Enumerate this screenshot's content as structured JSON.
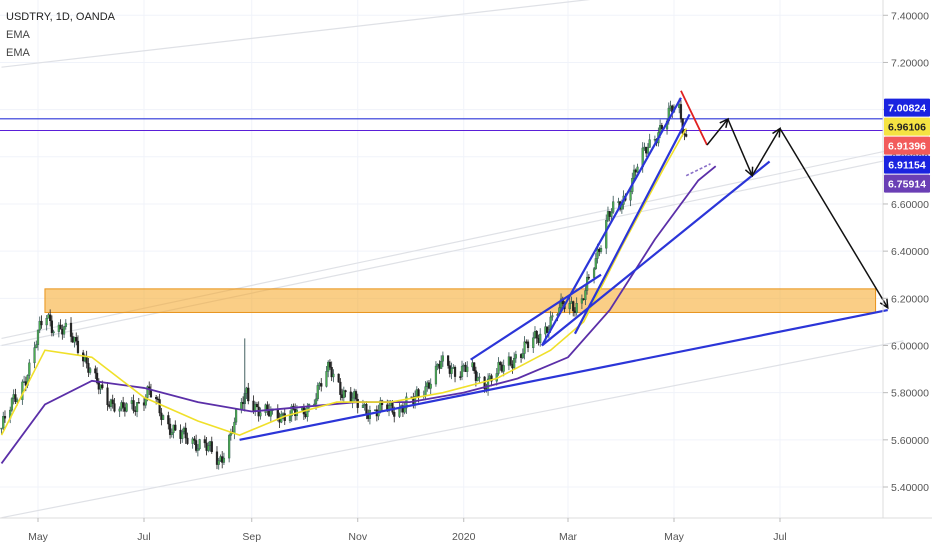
{
  "header": {
    "symbol": "USDTRY, 1D, OANDA",
    "indicators": [
      "EMA",
      "EMA"
    ]
  },
  "chart_data": {
    "type": "candlestick",
    "y_ticks": [
      "7.40000",
      "7.20000",
      "7.00000",
      "6.80000",
      "6.60000",
      "6.40000",
      "6.20000",
      "6.00000",
      "5.80000",
      "5.60000",
      "5.40000"
    ],
    "y_tick_values": [
      7.4,
      7.2,
      7.0,
      6.8,
      6.6,
      6.4,
      6.2,
      6.0,
      5.8,
      5.6,
      5.4
    ],
    "ylim": [
      5.3,
      7.5
    ],
    "x_ticks": [
      "May",
      "Jul",
      "Sep",
      "Nov",
      "2020",
      "Mar",
      "May",
      "Jul"
    ],
    "x_tick_dates": [
      "2019-05-01",
      "2019-07-01",
      "2019-09-01",
      "2019-11-01",
      "2020-01-01",
      "2020-03-01",
      "2020-05-01",
      "2020-07-01"
    ],
    "xlim": [
      "2019-04-10",
      "2020-09-10"
    ],
    "price_tags": [
      {
        "value": "7.00824",
        "price": 7.00824,
        "color": "#1a23e0",
        "text_color": "#ffffff"
      },
      {
        "value": "6.96106",
        "price": 6.96106,
        "color": "#f5e342",
        "text_color": "#222222"
      },
      {
        "value": "6.91396",
        "price": 6.91396,
        "color": "#f25b5b",
        "text_color": "#ffffff"
      },
      {
        "value": "6.91154",
        "price": 6.91154,
        "color": "#1a23e0",
        "text_color": "#ffffff"
      },
      {
        "value": "6.75914",
        "price": 6.75914,
        "color": "#6a3fb5",
        "text_color": "#ffffff"
      }
    ],
    "horizontal_lines": [
      {
        "price": 6.96106,
        "color": "#2b35d8"
      },
      {
        "price": 6.91154,
        "color": "#5a1fd8"
      }
    ],
    "support_zone": {
      "top": 6.24,
      "bottom": 6.14,
      "from": "2019-05-05",
      "to": "2020-08-25",
      "color": "#f5a623"
    },
    "candles_close": [
      [
        "2019-04-10",
        5.65
      ],
      [
        "2019-04-18",
        5.78
      ],
      [
        "2019-04-26",
        5.9
      ],
      [
        "2019-05-05",
        6.15
      ],
      [
        "2019-05-10",
        6.08
      ],
      [
        "2019-05-18",
        6.05
      ],
      [
        "2019-05-25",
        6.0
      ],
      [
        "2019-06-02",
        5.85
      ],
      [
        "2019-06-10",
        5.78
      ],
      [
        "2019-06-18",
        5.72
      ],
      [
        "2019-06-26",
        5.75
      ],
      [
        "2019-07-04",
        5.8
      ],
      [
        "2019-07-12",
        5.7
      ],
      [
        "2019-07-20",
        5.62
      ],
      [
        "2019-07-28",
        5.6
      ],
      [
        "2019-08-05",
        5.58
      ],
      [
        "2019-08-13",
        5.5
      ],
      [
        "2019-08-21",
        5.65
      ],
      [
        "2019-08-29",
        5.8
      ],
      [
        "2019-09-06",
        5.72
      ],
      [
        "2019-09-14",
        5.7
      ],
      [
        "2019-09-22",
        5.72
      ],
      [
        "2019-09-30",
        5.7
      ],
      [
        "2019-10-08",
        5.8
      ],
      [
        "2019-10-16",
        5.9
      ],
      [
        "2019-10-24",
        5.8
      ],
      [
        "2019-11-01",
        5.75
      ],
      [
        "2019-11-09",
        5.72
      ],
      [
        "2019-11-17",
        5.73
      ],
      [
        "2019-11-25",
        5.74
      ],
      [
        "2019-12-03",
        5.76
      ],
      [
        "2019-12-11",
        5.84
      ],
      [
        "2019-12-19",
        5.92
      ],
      [
        "2019-12-27",
        5.9
      ],
      [
        "2020-01-04",
        5.9
      ],
      [
        "2020-01-12",
        5.84
      ],
      [
        "2020-01-20",
        5.88
      ],
      [
        "2020-01-28",
        5.94
      ],
      [
        "2020-02-05",
        5.98
      ],
      [
        "2020-02-13",
        6.05
      ],
      [
        "2020-02-21",
        6.1
      ],
      [
        "2020-02-29",
        6.2
      ],
      [
        "2020-03-08",
        6.15
      ],
      [
        "2020-03-16",
        6.35
      ],
      [
        "2020-03-24",
        6.55
      ],
      [
        "2020-04-01",
        6.6
      ],
      [
        "2020-04-09",
        6.75
      ],
      [
        "2020-04-17",
        6.85
      ],
      [
        "2020-04-25",
        6.95
      ],
      [
        "2020-05-03",
        7.02
      ],
      [
        "2020-05-08",
        6.88
      ]
    ],
    "ema_fast": [
      [
        "2019-04-10",
        5.62
      ],
      [
        "2019-05-05",
        5.98
      ],
      [
        "2019-06-01",
        5.95
      ],
      [
        "2019-07-01",
        5.78
      ],
      [
        "2019-08-01",
        5.68
      ],
      [
        "2019-08-25",
        5.62
      ],
      [
        "2019-09-20",
        5.7
      ],
      [
        "2019-10-20",
        5.76
      ],
      [
        "2019-11-20",
        5.76
      ],
      [
        "2019-12-20",
        5.8
      ],
      [
        "2020-01-20",
        5.86
      ],
      [
        "2020-02-20",
        5.98
      ],
      [
        "2020-03-10",
        6.1
      ],
      [
        "2020-04-01",
        6.42
      ],
      [
        "2020-04-25",
        6.75
      ],
      [
        "2020-05-08",
        6.92
      ]
    ],
    "ema_slow": [
      [
        "2019-04-10",
        5.5
      ],
      [
        "2019-05-05",
        5.75
      ],
      [
        "2019-06-01",
        5.85
      ],
      [
        "2019-07-01",
        5.82
      ],
      [
        "2019-08-01",
        5.76
      ],
      [
        "2019-09-01",
        5.72
      ],
      [
        "2019-10-01",
        5.74
      ],
      [
        "2019-11-01",
        5.76
      ],
      [
        "2019-12-01",
        5.76
      ],
      [
        "2020-01-01",
        5.8
      ],
      [
        "2020-02-01",
        5.86
      ],
      [
        "2020-03-01",
        5.95
      ],
      [
        "2020-03-25",
        6.15
      ],
      [
        "2020-04-20",
        6.45
      ],
      [
        "2020-05-15",
        6.7
      ],
      [
        "2020-05-25",
        6.76
      ]
    ],
    "trendlines": [
      {
        "from": [
          "2019-08-25",
          5.6
        ],
        "to": [
          "2020-09-01",
          6.15
        ],
        "color": "#2b35d8"
      },
      {
        "from": [
          "2020-01-05",
          5.94
        ],
        "to": [
          "2020-03-20",
          6.3
        ],
        "color": "#2b35d8"
      },
      {
        "from": [
          "2020-02-15",
          6.0
        ],
        "to": [
          "2020-06-25",
          6.78
        ],
        "color": "#2b35d8"
      },
      {
        "from": [
          "2020-02-15",
          6.0
        ],
        "to": [
          "2020-05-05",
          7.05
        ],
        "color": "#2b35d8"
      },
      {
        "from": [
          "2020-03-05",
          6.05
        ],
        "to": [
          "2020-05-10",
          6.98
        ],
        "color": "#2b35d8"
      },
      {
        "from": [
          "2020-05-05",
          7.08
        ],
        "to": [
          "2020-05-20",
          6.85
        ],
        "color": "#e02020"
      }
    ],
    "projection_path": [
      [
        "2020-05-20",
        6.85
      ],
      [
        "2020-06-01",
        6.96
      ],
      [
        "2020-06-15",
        6.72
      ],
      [
        "2020-07-01",
        6.92
      ],
      [
        "2020-09-01",
        6.16
      ]
    ]
  }
}
